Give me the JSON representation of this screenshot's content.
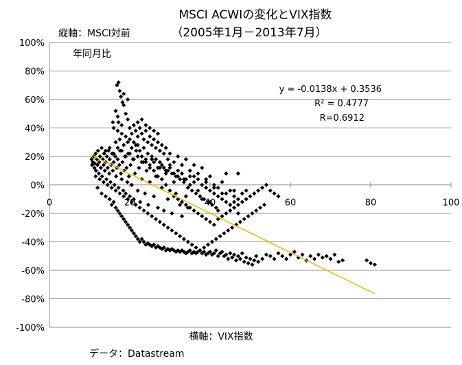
{
  "chart_data": {
    "type": "scatter",
    "title": "MSCI ACWIの変化とVIX指数",
    "subtitle": "（2005年1月－2013年7月）",
    "ylabel_lines": [
      "縦軸：MSCI対前",
      "年同月比"
    ],
    "xlabel": "横軸：VIX指数",
    "source": "データ：Datastream",
    "xlim": [
      0,
      100
    ],
    "ylim": [
      -100,
      100
    ],
    "x_ticks": [
      0,
      20,
      40,
      60,
      80,
      100
    ],
    "x_tick_labels": [
      "0",
      "20",
      "40",
      "60",
      "80",
      "100"
    ],
    "y_ticks": [
      100,
      80,
      60,
      40,
      20,
      0,
      -20,
      -40,
      -60,
      -80,
      -100
    ],
    "y_tick_labels": [
      "100%",
      "80%",
      "60%",
      "40%",
      "20%",
      "0%",
      "-20%",
      "-40%",
      "-60%",
      "-80%",
      "-100%"
    ],
    "grid": "horizontal",
    "marker_color": "#000000",
    "trend_color": "#F5B800",
    "trendline": {
      "slope": -1.38,
      "intercept": 35.36,
      "x_range": [
        10.5,
        81
      ]
    },
    "annotation": [
      "y = -0.0138x + 0.3536",
      "R² = 0.4777",
      "R=0.6912"
    ],
    "points": [
      [
        10.5,
        18
      ],
      [
        10.6,
        14
      ],
      [
        10.8,
        16
      ],
      [
        11.0,
        20
      ],
      [
        11.2,
        12
      ],
      [
        11.3,
        15
      ],
      [
        11.5,
        22
      ],
      [
        11.6,
        10
      ],
      [
        11.8,
        18
      ],
      [
        12.0,
        14
      ],
      [
        12.1,
        24
      ],
      [
        12.3,
        8
      ],
      [
        12.4,
        16
      ],
      [
        12.6,
        20
      ],
      [
        12.8,
        12
      ],
      [
        13.0,
        26
      ],
      [
        13.1,
        6
      ],
      [
        13.3,
        18
      ],
      [
        13.5,
        14
      ],
      [
        13.6,
        22
      ],
      [
        13.8,
        10
      ],
      [
        14.0,
        16
      ],
      [
        14.2,
        4
      ],
      [
        14.3,
        20
      ],
      [
        14.5,
        12
      ],
      [
        14.7,
        24
      ],
      [
        14.9,
        8
      ],
      [
        15.0,
        18
      ],
      [
        15.2,
        2
      ],
      [
        15.4,
        14
      ],
      [
        15.6,
        22
      ],
      [
        15.8,
        10
      ],
      [
        16.0,
        16
      ],
      [
        16.2,
        0
      ],
      [
        16.4,
        20
      ],
      [
        16.6,
        6
      ],
      [
        16.8,
        12
      ],
      [
        17.0,
        18
      ],
      [
        17.2,
        -2
      ],
      [
        17.4,
        14
      ],
      [
        17.6,
        24
      ],
      [
        17.8,
        8
      ],
      [
        18.0,
        4
      ],
      [
        18.2,
        16
      ],
      [
        18.4,
        -4
      ],
      [
        18.6,
        10
      ],
      [
        18.8,
        20
      ],
      [
        19.0,
        -6
      ],
      [
        19.2,
        12
      ],
      [
        19.4,
        2
      ],
      [
        19.6,
        22
      ],
      [
        19.8,
        6
      ],
      [
        20.0,
        -8
      ],
      [
        20.2,
        14
      ],
      [
        20.5,
        0
      ],
      [
        20.8,
        18
      ],
      [
        21.0,
        -10
      ],
      [
        21.3,
        8
      ],
      [
        21.6,
        24
      ],
      [
        22.0,
        -4
      ],
      [
        22.3,
        12
      ],
      [
        22.6,
        -12
      ],
      [
        23.0,
        4
      ],
      [
        23.4,
        16
      ],
      [
        23.8,
        -6
      ],
      [
        24.2,
        10
      ],
      [
        24.6,
        -14
      ],
      [
        25.0,
        2
      ],
      [
        25.5,
        18
      ],
      [
        26.0,
        -8
      ],
      [
        26.5,
        6
      ],
      [
        27.0,
        -16
      ],
      [
        27.5,
        12
      ],
      [
        28.0,
        -2
      ],
      [
        28.5,
        -18
      ],
      [
        29.0,
        8
      ],
      [
        29.5,
        -10
      ],
      [
        30.0,
        14
      ],
      [
        30.5,
        -20
      ],
      [
        31.0,
        2
      ],
      [
        31.5,
        -6
      ],
      [
        32.0,
        10
      ],
      [
        32.5,
        -14
      ],
      [
        33.0,
        -22
      ],
      [
        33.5,
        4
      ],
      [
        34.0,
        -8
      ],
      [
        34.5,
        -16
      ],
      [
        35.0,
        0
      ],
      [
        36.0,
        6
      ],
      [
        37.0,
        -4
      ],
      [
        38.0,
        -10
      ],
      [
        39.0,
        2
      ],
      [
        40.0,
        -12
      ],
      [
        41.0,
        -2
      ],
      [
        42.0,
        -18
      ],
      [
        43.0,
        -6
      ],
      [
        44.0,
        8
      ],
      [
        45.0,
        -14
      ],
      [
        46.0,
        -4
      ],
      [
        47.0,
        -20
      ],
      [
        12.0,
        -2
      ],
      [
        13.0,
        -6
      ],
      [
        14.0,
        -8
      ],
      [
        15.0,
        -10
      ],
      [
        16.0,
        -12
      ],
      [
        15.5,
        -14
      ],
      [
        16.5,
        -16
      ],
      [
        17.0,
        -18
      ],
      [
        17.5,
        -20
      ],
      [
        18.0,
        -22
      ],
      [
        18.5,
        -24
      ],
      [
        19.0,
        -26
      ],
      [
        19.5,
        -28
      ],
      [
        20.0,
        -30
      ],
      [
        20.5,
        -32
      ],
      [
        21.0,
        -34
      ],
      [
        21.5,
        -36
      ],
      [
        22.0,
        -38
      ],
      [
        22.5,
        -40
      ],
      [
        23.0,
        -38
      ],
      [
        23.5,
        -40
      ],
      [
        24.0,
        -42
      ],
      [
        24.5,
        -41
      ],
      [
        25.0,
        -42
      ],
      [
        25.5,
        -43
      ],
      [
        26.0,
        -42
      ],
      [
        26.5,
        -44
      ],
      [
        27.0,
        -43
      ],
      [
        27.5,
        -44
      ],
      [
        28.0,
        -45
      ],
      [
        28.5,
        -44
      ],
      [
        29.0,
        -46
      ],
      [
        29.5,
        -45
      ],
      [
        30.0,
        -46
      ],
      [
        30.5,
        -45
      ],
      [
        31.0,
        -46
      ],
      [
        31.5,
        -47
      ],
      [
        32.0,
        -46
      ],
      [
        32.5,
        -47
      ],
      [
        33.0,
        -46
      ],
      [
        33.5,
        -47
      ],
      [
        34.0,
        -48
      ],
      [
        34.5,
        -47
      ],
      [
        35.0,
        -46
      ],
      [
        35.5,
        -48
      ],
      [
        36.0,
        -47
      ],
      [
        36.5,
        -48
      ],
      [
        37.0,
        -47
      ],
      [
        37.5,
        -46
      ],
      [
        38.0,
        -48
      ],
      [
        38.5,
        -47
      ],
      [
        39.0,
        -49
      ],
      [
        39.5,
        -48
      ],
      [
        40.0,
        -47
      ],
      [
        40.5,
        -49
      ],
      [
        41.0,
        -48
      ],
      [
        41.5,
        -46
      ],
      [
        42.0,
        -50
      ],
      [
        42.5,
        -48
      ],
      [
        43.0,
        -47
      ],
      [
        43.5,
        -50
      ],
      [
        44.0,
        -49
      ],
      [
        44.5,
        -52
      ],
      [
        45.0,
        -48
      ],
      [
        45.5,
        -51
      ],
      [
        46.0,
        -49
      ],
      [
        46.5,
        -53
      ],
      [
        47.0,
        -50
      ],
      [
        47.5,
        -52
      ],
      [
        48.0,
        -48
      ],
      [
        48.5,
        -54
      ],
      [
        49.0,
        -51
      ],
      [
        49.5,
        -55
      ],
      [
        50.0,
        -52
      ],
      [
        50.5,
        -56
      ],
      [
        51.0,
        -53
      ],
      [
        51.5,
        -50
      ],
      [
        52.0,
        -54
      ],
      [
        53.0,
        -52
      ],
      [
        54.0,
        -49
      ],
      [
        55.0,
        -50
      ],
      [
        56.0,
        -52
      ],
      [
        57.0,
        -48
      ],
      [
        58.0,
        -50
      ],
      [
        59.0,
        -52
      ],
      [
        60.0,
        -49
      ],
      [
        61.0,
        -47
      ],
      [
        62.0,
        -51
      ],
      [
        63.0,
        -49
      ],
      [
        64.0,
        -53
      ],
      [
        65.0,
        -50
      ],
      [
        66.0,
        -52
      ],
      [
        67.0,
        -49
      ],
      [
        68.0,
        -51
      ],
      [
        69.0,
        -50
      ],
      [
        70.0,
        -52
      ],
      [
        71.0,
        -49
      ],
      [
        72.0,
        -54
      ],
      [
        73.0,
        -53
      ],
      [
        79.0,
        -53
      ],
      [
        80.0,
        -55
      ],
      [
        81.0,
        -56
      ],
      [
        16.8,
        70
      ],
      [
        17.2,
        72
      ],
      [
        17.5,
        66
      ],
      [
        17.8,
        62
      ],
      [
        18.2,
        58
      ],
      [
        16.5,
        52
      ],
      [
        17.0,
        48
      ],
      [
        18.5,
        56
      ],
      [
        19.0,
        50
      ],
      [
        15.8,
        44
      ],
      [
        16.0,
        40
      ],
      [
        17.2,
        44
      ],
      [
        18.0,
        42
      ],
      [
        19.5,
        46
      ],
      [
        20.0,
        40
      ],
      [
        20.5,
        36
      ],
      [
        21.0,
        42
      ],
      [
        21.5,
        38
      ],
      [
        22.0,
        34
      ],
      [
        22.5,
        40
      ],
      [
        23.0,
        36
      ],
      [
        23.5,
        32
      ],
      [
        24.0,
        38
      ],
      [
        24.5,
        30
      ],
      [
        25.0,
        34
      ],
      [
        25.5,
        28
      ],
      [
        26.0,
        32
      ],
      [
        26.5,
        26
      ],
      [
        27.0,
        30
      ],
      [
        27.5,
        24
      ],
      [
        28.0,
        28
      ],
      [
        28.5,
        22
      ],
      [
        29.0,
        26
      ],
      [
        29.5,
        18
      ],
      [
        30.0,
        22
      ],
      [
        31.0,
        16
      ],
      [
        32.0,
        20
      ],
      [
        33.0,
        14
      ],
      [
        34.0,
        18
      ],
      [
        35.0,
        10
      ],
      [
        36.0,
        14
      ],
      [
        37.0,
        8
      ],
      [
        38.0,
        12
      ],
      [
        39.0,
        4
      ],
      [
        40.0,
        6
      ],
      [
        41.0,
        0
      ],
      [
        42.0,
        -2
      ],
      [
        43.0,
        2
      ],
      [
        44.0,
        -6
      ],
      [
        45.0,
        -4
      ],
      [
        46.0,
        -8
      ],
      [
        16.5,
        30
      ],
      [
        17.5,
        32
      ],
      [
        18.5,
        28
      ],
      [
        19.5,
        30
      ],
      [
        20.5,
        26
      ],
      [
        21.5,
        28
      ],
      [
        22.5,
        24
      ],
      [
        23.5,
        26
      ],
      [
        24.5,
        22
      ],
      [
        25.5,
        20
      ],
      [
        26.5,
        18
      ],
      [
        27.5,
        16
      ],
      [
        28.5,
        12
      ],
      [
        29.5,
        10
      ],
      [
        30.5,
        8
      ],
      [
        31.5,
        6
      ],
      [
        32.5,
        4
      ],
      [
        33.5,
        2
      ],
      [
        34.5,
        -2
      ],
      [
        35.5,
        -4
      ],
      [
        36.5,
        -6
      ],
      [
        37.5,
        -8
      ],
      [
        38.5,
        -10
      ],
      [
        39.5,
        -12
      ],
      [
        40.5,
        -14
      ],
      [
        41.5,
        -16
      ],
      [
        25.0,
        40
      ],
      [
        26.0,
        38
      ],
      [
        27.0,
        36
      ],
      [
        22.0,
        44
      ],
      [
        23.0,
        46
      ],
      [
        24.0,
        42
      ],
      [
        18.5,
        64
      ],
      [
        19.5,
        60
      ],
      [
        17.0,
        38
      ],
      [
        18.0,
        36
      ],
      [
        19.0,
        34
      ],
      [
        20.0,
        32
      ],
      [
        21.0,
        30
      ],
      [
        22.0,
        28
      ],
      [
        23.0,
        20
      ],
      [
        24.0,
        16
      ],
      [
        25.0,
        12
      ],
      [
        26.0,
        10
      ],
      [
        27.0,
        6
      ],
      [
        28.0,
        4
      ],
      [
        29.0,
        0
      ],
      [
        30.0,
        -4
      ],
      [
        31.0,
        -8
      ],
      [
        32.0,
        -10
      ],
      [
        33.0,
        -12
      ],
      [
        34.0,
        -14
      ],
      [
        35.0,
        -16
      ],
      [
        36.0,
        -18
      ],
      [
        37.0,
        -20
      ],
      [
        38.0,
        -22
      ],
      [
        39.0,
        -24
      ],
      [
        40.0,
        -26
      ],
      [
        41.0,
        -28
      ],
      [
        42.0,
        -24
      ],
      [
        43.0,
        -22
      ],
      [
        44.0,
        -20
      ],
      [
        45.0,
        -18
      ],
      [
        46.0,
        -16
      ],
      [
        47.0,
        -14
      ],
      [
        48.0,
        -12
      ],
      [
        49.0,
        -10
      ],
      [
        50.0,
        -8
      ],
      [
        51.0,
        -6
      ],
      [
        52.0,
        -4
      ],
      [
        53.0,
        -2
      ],
      [
        54.0,
        0
      ],
      [
        55.0,
        -4
      ],
      [
        56.0,
        -6
      ],
      [
        57.0,
        -8
      ],
      [
        47.0,
        8
      ],
      [
        11.5,
        6
      ],
      [
        12.5,
        4
      ],
      [
        13.5,
        2
      ],
      [
        14.5,
        0
      ],
      [
        15.5,
        -2
      ],
      [
        16.5,
        -4
      ],
      [
        17.5,
        -6
      ],
      [
        18.5,
        -8
      ],
      [
        19.5,
        -10
      ],
      [
        20.5,
        -12
      ],
      [
        21.5,
        -14
      ],
      [
        22.5,
        -16
      ],
      [
        23.5,
        -18
      ],
      [
        24.5,
        -20
      ],
      [
        25.5,
        -22
      ],
      [
        26.5,
        -24
      ],
      [
        27.5,
        -26
      ],
      [
        28.5,
        -28
      ],
      [
        29.5,
        -30
      ],
      [
        30.5,
        -32
      ],
      [
        31.5,
        -34
      ],
      [
        32.5,
        -36
      ],
      [
        33.5,
        -38
      ],
      [
        34.5,
        -40
      ],
      [
        35.5,
        -42
      ],
      [
        36.5,
        -44
      ],
      [
        37.5,
        -46
      ],
      [
        38.5,
        -44
      ],
      [
        39.5,
        -42
      ],
      [
        40.5,
        -40
      ],
      [
        41.5,
        -38
      ],
      [
        42.5,
        -36
      ],
      [
        43.5,
        -34
      ],
      [
        44.5,
        -32
      ],
      [
        45.5,
        -30
      ],
      [
        46.5,
        -28
      ],
      [
        47.5,
        -26
      ],
      [
        48.5,
        -24
      ],
      [
        49.5,
        -22
      ],
      [
        50.5,
        -20
      ],
      [
        51.5,
        -18
      ],
      [
        52.5,
        -16
      ],
      [
        53.5,
        -14
      ],
      [
        14.0,
        24
      ],
      [
        15.0,
        26
      ],
      [
        16.0,
        22
      ],
      [
        17.0,
        26
      ],
      [
        18.0,
        24
      ],
      [
        19.0,
        20
      ],
      [
        20.0,
        22
      ],
      [
        21.0,
        18
      ],
      [
        22.0,
        20
      ],
      [
        23.0,
        16
      ],
      [
        24.0,
        18
      ],
      [
        25.0,
        14
      ],
      [
        26.0,
        16
      ],
      [
        27.0,
        12
      ],
      [
        28.0,
        14
      ],
      [
        29.0,
        10
      ],
      [
        30.0,
        12
      ],
      [
        31.0,
        8
      ],
      [
        32.0,
        6
      ],
      [
        33.0,
        8
      ],
      [
        34.0,
        4
      ],
      [
        35.0,
        6
      ],
      [
        36.0,
        2
      ],
      [
        37.0,
        4
      ],
      [
        38.0,
        0
      ],
      [
        39.0,
        -2
      ],
      [
        40.0,
        -4
      ],
      [
        41.0,
        -6
      ],
      [
        42.0,
        -8
      ],
      [
        43.0,
        -10
      ],
      [
        44.0,
        -12
      ],
      [
        45.0,
        -14
      ],
      [
        46.0,
        -12
      ],
      [
        47.0,
        -10
      ],
      [
        48.0,
        -6
      ],
      [
        49.0,
        -4
      ]
    ]
  }
}
